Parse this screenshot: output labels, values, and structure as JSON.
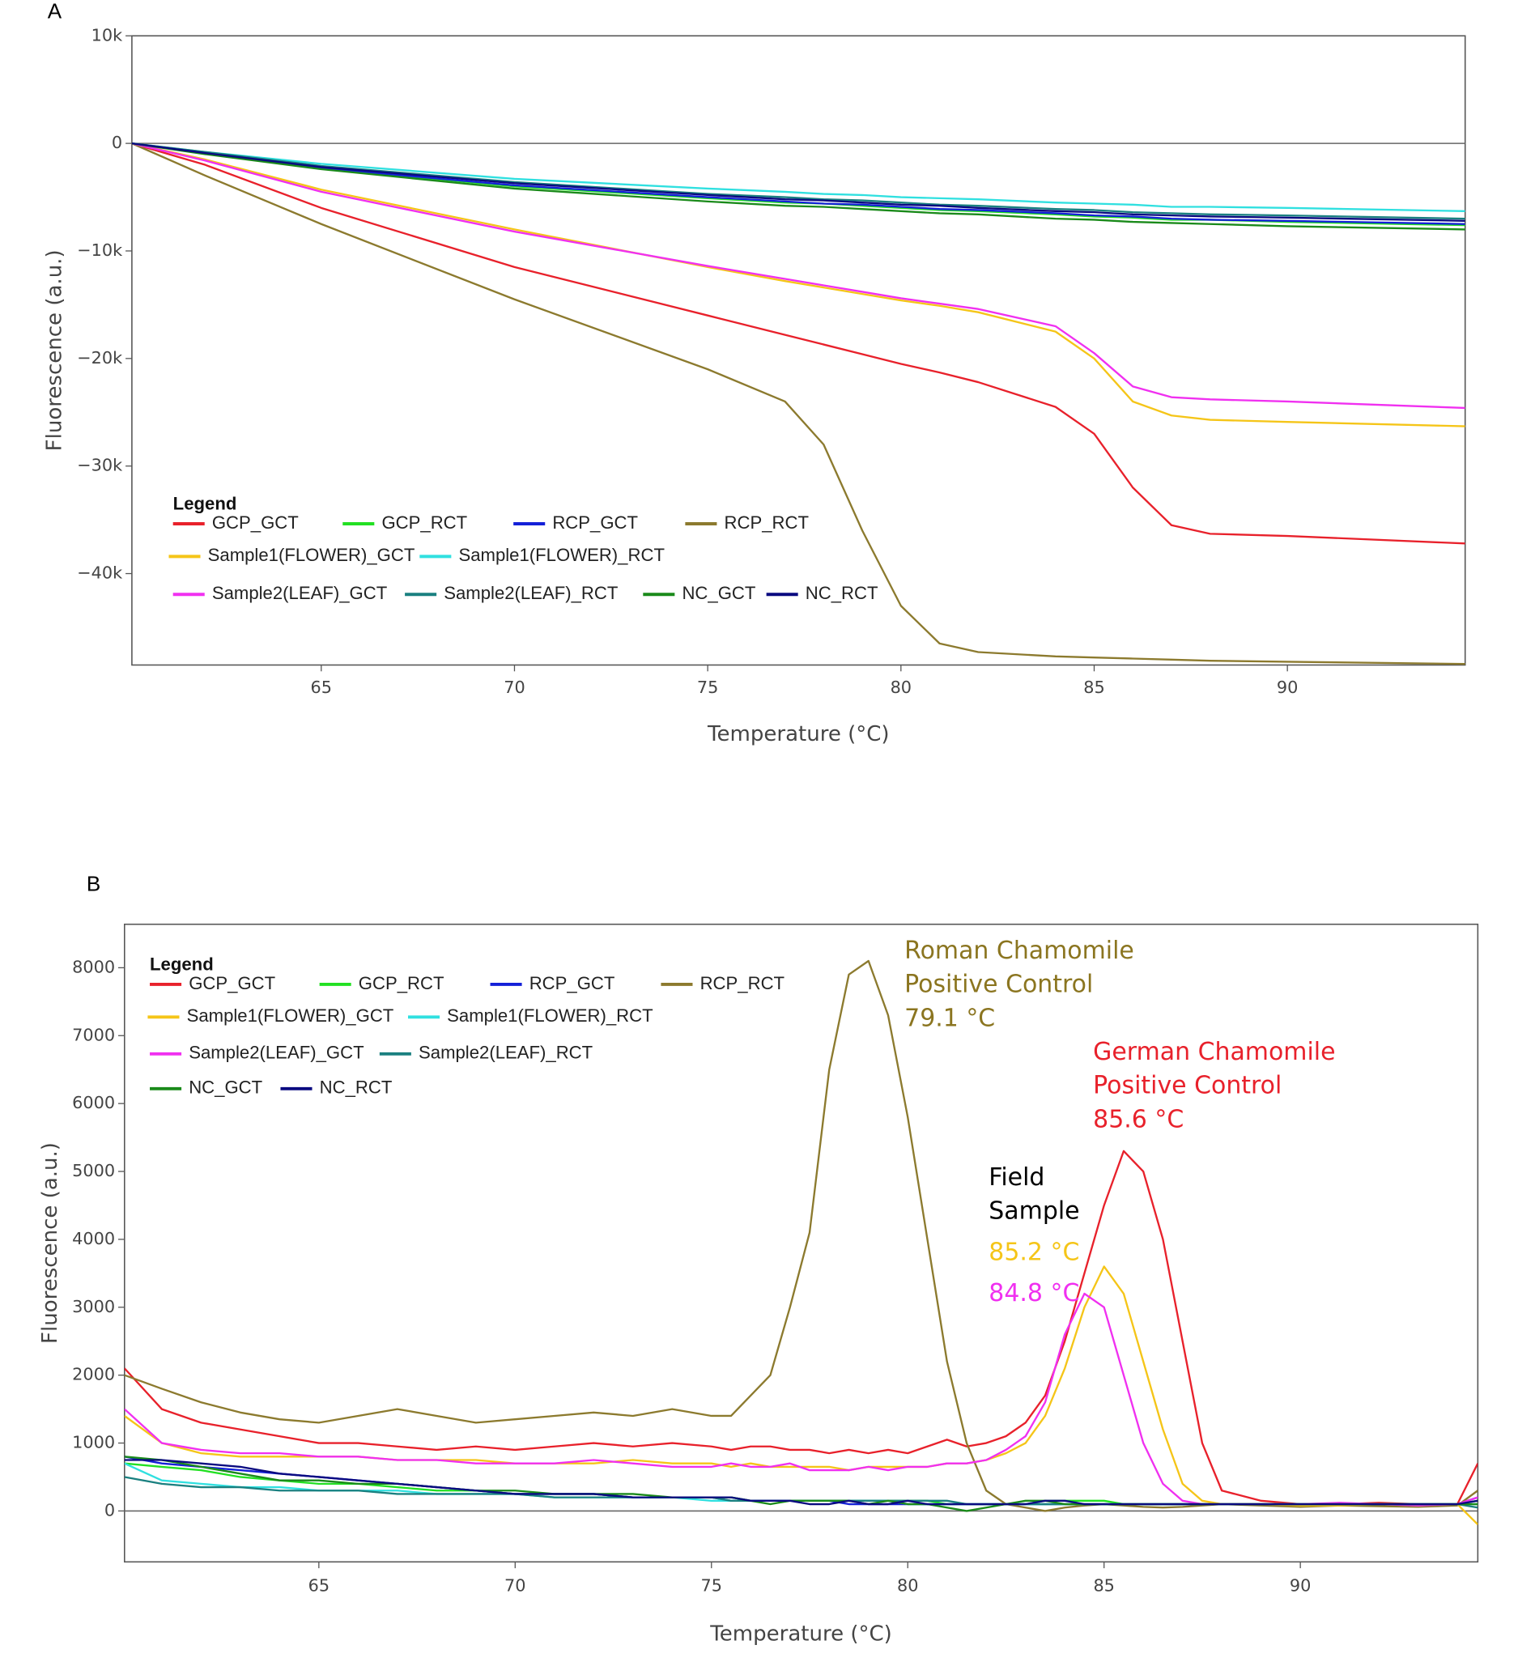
{
  "chart_data": [
    {
      "type": "line",
      "panel_label": "A",
      "xlabel": "Temperature (°C)",
      "ylabel": "Fluorescence (a.u.)",
      "legend_title": "Legend",
      "xlim": [
        60.1,
        94.6
      ],
      "xticks": [
        65,
        70,
        75,
        80,
        85,
        90
      ],
      "ylim": [
        -48500,
        10000
      ],
      "yticks": [
        {
          "value": 10000,
          "label": "10k"
        },
        0,
        {
          "value": -10000,
          "label": "−10k"
        },
        {
          "value": -20000,
          "label": "−20k"
        },
        {
          "value": -30000,
          "label": "−30k"
        },
        {
          "value": -40000,
          "label": "−40k"
        }
      ],
      "zero_line": true,
      "x": [
        60.1,
        62,
        65,
        70,
        75,
        77,
        78,
        79,
        80,
        81,
        82,
        84,
        85,
        86,
        87,
        88,
        90,
        94.6
      ],
      "series": [
        {
          "name": "GCP_GCT",
          "color": "#e8212b",
          "values": [
            0,
            -2000,
            -6000,
            -11500,
            -16000,
            -17800,
            -18700,
            -19600,
            -20500,
            -21300,
            -22200,
            -24500,
            -27000,
            -32000,
            -35500,
            -36300,
            -36500,
            -37200
          ]
        },
        {
          "name": "GCP_RCT",
          "color": "#22e022",
          "values": [
            0,
            -900,
            -2300,
            -4000,
            -5100,
            -5500,
            -5600,
            -5800,
            -6000,
            -6200,
            -6300,
            -6600,
            -6800,
            -6900,
            -7100,
            -7100,
            -7300,
            -7600
          ]
        },
        {
          "name": "RCP_GCT",
          "color": "#1420d8",
          "values": [
            0,
            -900,
            -2300,
            -3900,
            -5000,
            -5400,
            -5600,
            -5700,
            -5900,
            -6100,
            -6200,
            -6500,
            -6700,
            -6800,
            -7000,
            -7100,
            -7200,
            -7500
          ]
        },
        {
          "name": "RCP_RCT",
          "color": "#8c7a2e",
          "values": [
            0,
            -3000,
            -7500,
            -14500,
            -21000,
            -24000,
            -28000,
            -36000,
            -43000,
            -46500,
            -47300,
            -47700,
            -47800,
            -47900,
            -48000,
            -48100,
            -48200,
            -48400
          ]
        },
        {
          "name": "Sample1(FLOWER)_GCT",
          "color": "#f5c518",
          "values": [
            0,
            -1500,
            -4300,
            -8000,
            -11500,
            -12800,
            -13400,
            -14000,
            -14600,
            -15100,
            -15700,
            -17500,
            -20000,
            -24000,
            -25300,
            -25700,
            -25900,
            -26300
          ]
        },
        {
          "name": "Sample1(FLOWER)_RCT",
          "color": "#30e0e0",
          "values": [
            0,
            -800,
            -1900,
            -3300,
            -4200,
            -4500,
            -4700,
            -4800,
            -5000,
            -5100,
            -5200,
            -5500,
            -5600,
            -5700,
            -5900,
            -5900,
            -6000,
            -6300
          ]
        },
        {
          "name": "Sample2(LEAF)_GCT",
          "color": "#f030f0",
          "values": [
            0,
            -1600,
            -4500,
            -8200,
            -11400,
            -12600,
            -13200,
            -13800,
            -14400,
            -14900,
            -15400,
            -17000,
            -19500,
            -22600,
            -23600,
            -23800,
            -24000,
            -24600
          ]
        },
        {
          "name": "Sample2(LEAF)_RCT",
          "color": "#1a8080",
          "values": [
            0,
            -800,
            -2100,
            -3600,
            -4700,
            -5000,
            -5200,
            -5300,
            -5500,
            -5700,
            -5800,
            -6100,
            -6200,
            -6400,
            -6500,
            -6600,
            -6700,
            -7000
          ]
        },
        {
          "name": "NC_GCT",
          "color": "#1a8a1a",
          "values": [
            0,
            -1000,
            -2400,
            -4200,
            -5400,
            -5800,
            -5900,
            -6100,
            -6300,
            -6500,
            -6600,
            -7000,
            -7100,
            -7300,
            -7400,
            -7500,
            -7700,
            -8000
          ]
        },
        {
          "name": "NC_RCT",
          "color": "#0a0a80",
          "values": [
            0,
            -900,
            -2200,
            -3700,
            -4800,
            -5200,
            -5300,
            -5500,
            -5700,
            -5800,
            -6000,
            -6300,
            -6400,
            -6600,
            -6700,
            -6800,
            -6900,
            -7200
          ]
        }
      ]
    },
    {
      "type": "line",
      "panel_label": "B",
      "xlabel": "Temperature (°C)",
      "ylabel": "Fluorescence (a.u.)",
      "legend_title": "Legend",
      "xlim": [
        60.05,
        94.52
      ],
      "xticks": [
        65,
        70,
        75,
        80,
        85,
        90
      ],
      "ylim": [
        -750,
        8640
      ],
      "yticks": [
        0,
        1000,
        2000,
        3000,
        4000,
        5000,
        6000,
        7000,
        8000
      ],
      "zero_line": true,
      "x": [
        60.05,
        61,
        62,
        63,
        64,
        65,
        66,
        67,
        68,
        69,
        70,
        71,
        72,
        73,
        74,
        75,
        75.5,
        76,
        76.5,
        77,
        77.5,
        78,
        78.5,
        79,
        79.5,
        80,
        80.5,
        81,
        81.5,
        82,
        82.5,
        83,
        83.5,
        84,
        84.5,
        85,
        85.5,
        86,
        86.5,
        87,
        87.5,
        88,
        89,
        90,
        91,
        92,
        93,
        94,
        94.52
      ],
      "series": [
        {
          "name": "GCP_GCT",
          "color": "#e8212b",
          "values": [
            2100,
            1500,
            1300,
            1200,
            1100,
            1000,
            1000,
            950,
            900,
            950,
            900,
            950,
            1000,
            950,
            1000,
            950,
            900,
            950,
            950,
            900,
            900,
            850,
            900,
            850,
            900,
            850,
            950,
            1050,
            950,
            1000,
            1100,
            1300,
            1700,
            2500,
            3500,
            4500,
            5300,
            5000,
            4000,
            2500,
            1000,
            300,
            150,
            100,
            100,
            120,
            100,
            100,
            700
          ]
        },
        {
          "name": "GCP_RCT",
          "color": "#22e022",
          "values": [
            700,
            650,
            600,
            500,
            450,
            400,
            400,
            350,
            300,
            300,
            250,
            250,
            250,
            200,
            200,
            200,
            200,
            150,
            150,
            150,
            150,
            150,
            150,
            150,
            150,
            150,
            150,
            100,
            100,
            100,
            100,
            100,
            150,
            150,
            150,
            150,
            100,
            100,
            100,
            100,
            100,
            100,
            100,
            100,
            100,
            100,
            100,
            100,
            150
          ]
        },
        {
          "name": "RCP_GCT",
          "color": "#1420d8",
          "values": [
            800,
            700,
            650,
            600,
            550,
            500,
            450,
            400,
            350,
            300,
            250,
            250,
            250,
            200,
            200,
            200,
            150,
            150,
            150,
            150,
            150,
            150,
            100,
            100,
            100,
            100,
            100,
            100,
            100,
            100,
            100,
            100,
            100,
            100,
            100,
            100,
            100,
            100,
            100,
            100,
            100,
            100,
            100,
            100,
            100,
            100,
            100,
            100,
            200
          ]
        },
        {
          "name": "RCP_RCT",
          "color": "#8c7a2e",
          "values": [
            2000,
            1800,
            1600,
            1450,
            1350,
            1300,
            1400,
            1500,
            1400,
            1300,
            1350,
            1400,
            1450,
            1400,
            1500,
            1400,
            1400,
            1700,
            2000,
            3000,
            4100,
            6500,
            7900,
            8100,
            7300,
            5800,
            4000,
            2200,
            1000,
            300,
            100,
            50,
            0,
            50,
            80,
            100,
            80,
            60,
            50,
            60,
            80,
            100,
            80,
            60,
            80,
            70,
            60,
            80,
            300
          ]
        },
        {
          "name": "Sample1(FLOWER)_GCT",
          "color": "#f5c518",
          "values": [
            1400,
            1000,
            850,
            800,
            800,
            800,
            800,
            750,
            750,
            750,
            700,
            700,
            700,
            750,
            700,
            700,
            650,
            700,
            650,
            650,
            650,
            650,
            600,
            650,
            650,
            650,
            650,
            700,
            700,
            750,
            850,
            1000,
            1400,
            2100,
            3000,
            3600,
            3200,
            2200,
            1200,
            400,
            150,
            100,
            100,
            80,
            80,
            100,
            80,
            100,
            -200
          ]
        },
        {
          "name": "Sample1(FLOWER)_RCT",
          "color": "#30e0e0",
          "values": [
            700,
            450,
            400,
            350,
            350,
            300,
            300,
            300,
            250,
            250,
            250,
            200,
            200,
            200,
            200,
            150,
            150,
            150,
            150,
            150,
            150,
            150,
            150,
            150,
            150,
            100,
            100,
            100,
            100,
            100,
            100,
            100,
            100,
            100,
            100,
            100,
            100,
            100,
            100,
            100,
            100,
            100,
            100,
            100,
            100,
            100,
            100,
            100,
            100
          ]
        },
        {
          "name": "Sample2(LEAF)_GCT",
          "color": "#f030f0",
          "values": [
            1500,
            1000,
            900,
            850,
            850,
            800,
            800,
            750,
            750,
            700,
            700,
            700,
            750,
            700,
            650,
            650,
            700,
            650,
            650,
            700,
            600,
            600,
            600,
            650,
            600,
            650,
            650,
            700,
            700,
            750,
            900,
            1100,
            1600,
            2600,
            3200,
            3000,
            2000,
            1000,
            400,
            150,
            100,
            100,
            100,
            100,
            120,
            100,
            80,
            100,
            200
          ]
        },
        {
          "name": "Sample2(LEAF)_RCT",
          "color": "#1a8080",
          "values": [
            500,
            400,
            350,
            350,
            300,
            300,
            300,
            250,
            250,
            250,
            250,
            200,
            200,
            200,
            200,
            200,
            150,
            150,
            150,
            150,
            150,
            150,
            150,
            150,
            150,
            150,
            150,
            150,
            100,
            100,
            100,
            100,
            100,
            100,
            100,
            100,
            100,
            100,
            100,
            100,
            100,
            100,
            100,
            100,
            100,
            100,
            100,
            100,
            50
          ]
        },
        {
          "name": "NC_GCT",
          "color": "#1a8a1a",
          "values": [
            800,
            750,
            650,
            550,
            450,
            450,
            400,
            400,
            350,
            300,
            300,
            250,
            250,
            250,
            200,
            200,
            200,
            150,
            100,
            150,
            150,
            150,
            150,
            100,
            150,
            100,
            100,
            50,
            0,
            50,
            100,
            150,
            150,
            100,
            100,
            100,
            100,
            100,
            100,
            100,
            100,
            100,
            100,
            100,
            100,
            100,
            100,
            100,
            100
          ]
        },
        {
          "name": "NC_RCT",
          "color": "#0a0a80",
          "values": [
            750,
            750,
            700,
            650,
            550,
            500,
            450,
            400,
            350,
            300,
            250,
            250,
            250,
            200,
            200,
            200,
            200,
            150,
            150,
            150,
            100,
            100,
            150,
            100,
            100,
            150,
            100,
            100,
            100,
            100,
            100,
            100,
            150,
            150,
            100,
            100,
            100,
            100,
            100,
            100,
            100,
            100,
            100,
            100,
            100,
            100,
            100,
            100,
            150
          ]
        }
      ],
      "annotations": [
        {
          "text": "Roman Chamomile",
          "color": "#8b7520"
        },
        {
          "text": "Positive Control",
          "color": "#8b7520"
        },
        {
          "text": "79.1 °C",
          "color": "#8b7520"
        },
        {
          "text": "German Chamomile",
          "color": "#e8212b"
        },
        {
          "text": "Positive Control",
          "color": "#e8212b"
        },
        {
          "text": "85.6 °C",
          "color": "#e8212b"
        },
        {
          "text": "Field",
          "color": "#000000"
        },
        {
          "text": "Sample",
          "color": "#000000"
        },
        {
          "text": "85.2 °C",
          "color": "#f5c518"
        },
        {
          "text": "84.8 °C",
          "color": "#f030f0"
        }
      ]
    }
  ]
}
